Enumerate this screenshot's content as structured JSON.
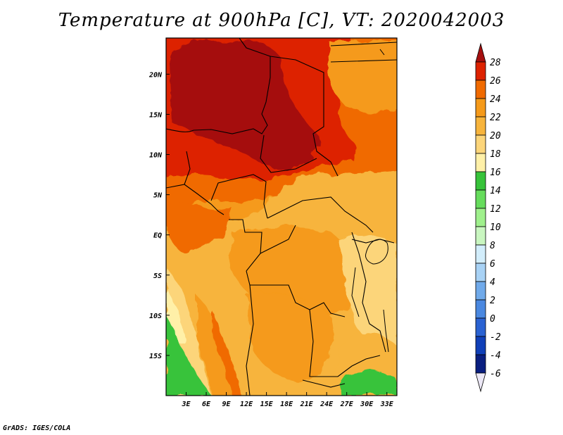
{
  "title": "Temperature at 900hPa [C], VT: 2020042003",
  "credit": "GrADS: IGES/COLA",
  "map": {
    "lon_range": [
      0,
      34.5
    ],
    "lat_range": [
      -20,
      24.5
    ],
    "x_ticks": [
      "3E",
      "6E",
      "9E",
      "12E",
      "15E",
      "18E",
      "21E",
      "24E",
      "27E",
      "30E",
      "33E"
    ],
    "y_ticks": [
      "20N",
      "15N",
      "10N",
      "5N",
      "EQ",
      "5S",
      "10S",
      "15S"
    ],
    "region_temps": {
      "sahel_west": 26,
      "chad_sudan_max": 28,
      "nigeria_south": 24,
      "congo_basin": 21,
      "angola_coast": 18,
      "namibia_coast": 14,
      "zambia": 21,
      "east_africa_highlands": 19
    }
  },
  "colorbar": {
    "labels": [
      "28",
      "26",
      "24",
      "22",
      "20",
      "18",
      "16",
      "14",
      "12",
      "10",
      "8",
      "6",
      "4",
      "2",
      "0",
      "-2",
      "-4",
      "-6"
    ],
    "colors": [
      "#a50f0f",
      "#dd2200",
      "#f06a00",
      "#f59a1a",
      "#f7b43c",
      "#fcd57a",
      "#fff0a8",
      "#37c33a",
      "#66dc5c",
      "#9ff08c",
      "#c9f6c0",
      "#d2edfb",
      "#a8d2f5",
      "#70aaea",
      "#4a88e0",
      "#2a62d2",
      "#1040b8",
      "#0a1f80",
      "#080a4a"
    ]
  }
}
